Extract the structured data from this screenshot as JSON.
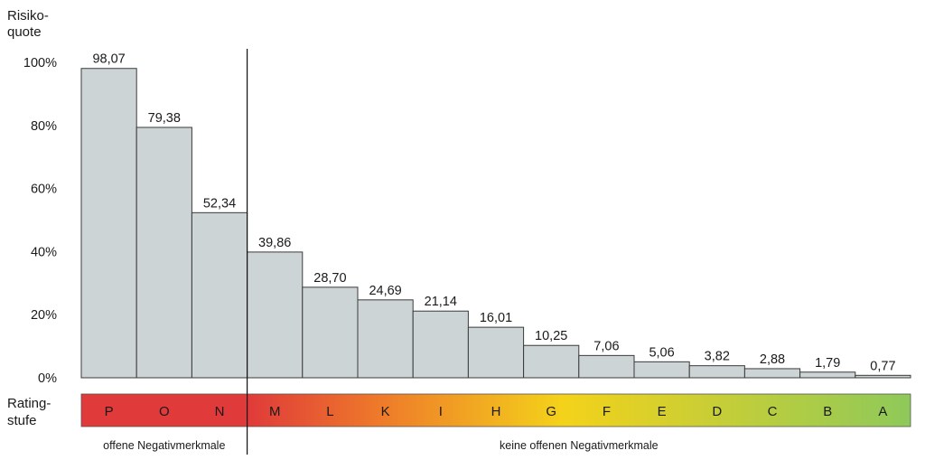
{
  "chart_data": {
    "type": "bar",
    "ylabel": "Risiko-\nquote",
    "xlabel": "Rating-\nstufe",
    "ylim": [
      0,
      100
    ],
    "yticks": [
      0,
      20,
      40,
      60,
      80,
      100
    ],
    "ytick_labels": [
      "0%",
      "20%",
      "40%",
      "60%",
      "80%",
      "100%"
    ],
    "categories": [
      "P",
      "O",
      "N",
      "M",
      "L",
      "K",
      "I",
      "H",
      "G",
      "F",
      "E",
      "D",
      "C",
      "B",
      "A"
    ],
    "values": [
      98.07,
      79.38,
      52.34,
      39.86,
      28.7,
      24.69,
      21.14,
      16.01,
      10.25,
      7.06,
      5.06,
      3.82,
      2.88,
      1.79,
      0.77
    ],
    "value_labels": [
      "98,07",
      "79,38",
      "52,34",
      "39,86",
      "28,70",
      "24,69",
      "21,14",
      "16,01",
      "10,25",
      "7,06",
      "5,06",
      "3,82",
      "2,88",
      "1,79",
      "0,77"
    ],
    "groups": [
      {
        "label": "offene Negativmerkmale",
        "categories": [
          "P",
          "O",
          "N"
        ]
      },
      {
        "label": "keine offenen Negativmerkmale",
        "categories": [
          "M",
          "L",
          "K",
          "I",
          "H",
          "G",
          "F",
          "E",
          "D",
          "C",
          "B",
          "A"
        ]
      }
    ],
    "bar_color": "#cdd4d6",
    "bar_edge_color": "#3a3a3a",
    "scale_colors": [
      "#e03a3a",
      "#ee7a2a",
      "#f4d21a",
      "#8ec95a"
    ],
    "grid": false
  }
}
